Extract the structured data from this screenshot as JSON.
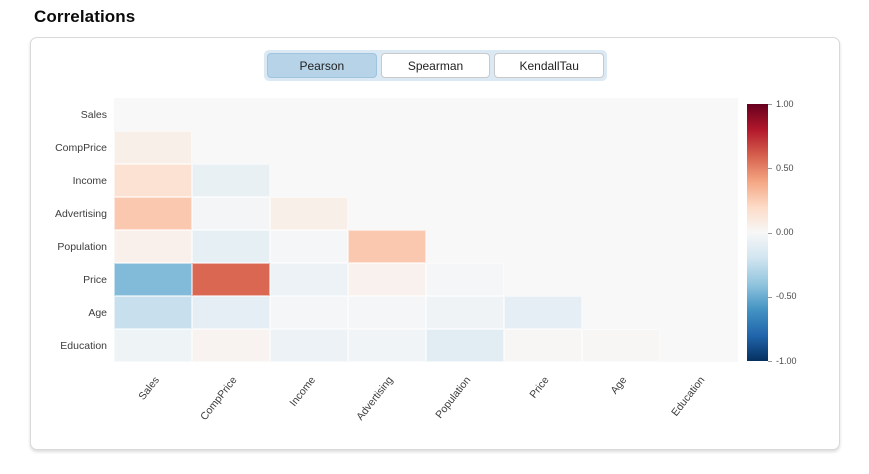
{
  "header": {
    "title": "Correlations"
  },
  "tabs": {
    "items": [
      {
        "label": "Pearson",
        "active": true
      },
      {
        "label": "Spearman",
        "active": false
      },
      {
        "label": "KendallTau",
        "active": false
      }
    ]
  },
  "chart_data": {
    "type": "heatmap",
    "title": "Correlations",
    "selected_method": "Pearson",
    "variables": [
      "Sales",
      "CompPrice",
      "Income",
      "Advertising",
      "Population",
      "Price",
      "Age",
      "Education"
    ],
    "x_tick_labels": [
      "Sales",
      "CompPrice",
      "Income",
      "Advertising",
      "Population",
      "Price",
      "Age",
      "Education"
    ],
    "y_tick_labels": [
      "Sales",
      "CompPrice",
      "Income",
      "Advertising",
      "Population",
      "Price",
      "Age",
      "Education"
    ],
    "mask": "upper triangle and diagonal hidden; only lower-triangle correlation cells drawn",
    "colormap": "RdBu_r",
    "vmin": -1,
    "vmax": 1,
    "matrix": [
      {
        "var": "Sales",
        "values": [
          null,
          null,
          null,
          null,
          null,
          null,
          null,
          null
        ]
      },
      {
        "var": "CompPrice",
        "values": [
          0.06,
          null,
          null,
          null,
          null,
          null,
          null,
          null
        ]
      },
      {
        "var": "Income",
        "values": [
          0.15,
          -0.08,
          null,
          null,
          null,
          null,
          null,
          null
        ]
      },
      {
        "var": "Advertising",
        "values": [
          0.27,
          -0.02,
          0.06,
          null,
          null,
          null,
          null,
          null
        ]
      },
      {
        "var": "Population",
        "values": [
          0.05,
          -0.09,
          -0.01,
          0.27,
          null,
          null,
          null,
          null
        ]
      },
      {
        "var": "Price",
        "values": [
          -0.44,
          0.58,
          -0.06,
          0.04,
          -0.01,
          null,
          null,
          null
        ]
      },
      {
        "var": "Age",
        "values": [
          -0.23,
          -0.1,
          -0.01,
          -0.01,
          -0.04,
          -0.1,
          null,
          null
        ]
      },
      {
        "var": "Education",
        "values": [
          -0.05,
          0.03,
          -0.06,
          -0.03,
          -0.11,
          0.01,
          0.01,
          null
        ]
      }
    ],
    "colorbar": {
      "ticks": [
        "1.00",
        "0.50",
        "0.00",
        "-0.50",
        "-1.00"
      ],
      "tick_values": [
        1.0,
        0.5,
        0.0,
        -0.5,
        -1.0
      ]
    },
    "legend_position": "right",
    "grid": false
  },
  "colors": {
    "tab_group_bg": "#dbe9f4",
    "active_tab_bg": "#b6d3e8",
    "plot_bg": "#f8f8f8",
    "colormap_anchors_low_to_high": [
      "#053061",
      "#2166ac",
      "#4393c3",
      "#92c5de",
      "#d1e5f0",
      "#f7f7f7",
      "#fddbc7",
      "#f4a582",
      "#d6604d",
      "#b2182b",
      "#67001f"
    ]
  }
}
